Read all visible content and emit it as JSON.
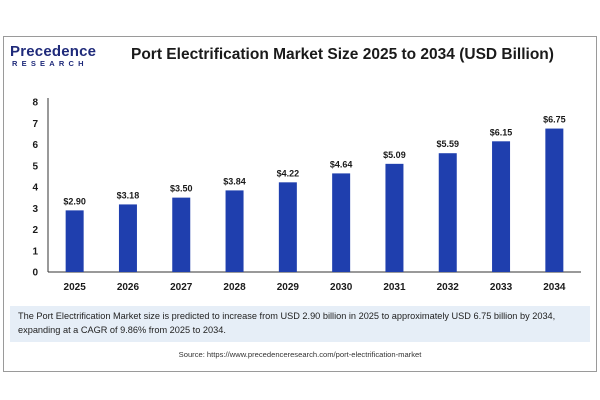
{
  "header": {
    "logo_main": "Precedence",
    "logo_sub": "RESEARCH",
    "title": "Port Electrification Market Size 2025 to 2034 (USD Billion)"
  },
  "colors": {
    "bar": "#1f3fae",
    "axis": "#333333",
    "logo": "#1f2a7a",
    "description_bg": "#e6eef7"
  },
  "chart_data": {
    "type": "bar",
    "title": "Port Electrification Market Size 2025 to 2034 (USD Billion)",
    "categories": [
      "2025",
      "2026",
      "2027",
      "2028",
      "2029",
      "2030",
      "2031",
      "2032",
      "2033",
      "2034"
    ],
    "values": [
      2.9,
      3.18,
      3.5,
      3.84,
      4.22,
      4.64,
      5.09,
      5.59,
      6.15,
      6.75
    ],
    "value_labels": [
      "$2.90",
      "$3.18",
      "$3.50",
      "$3.84",
      "$4.22",
      "$4.64",
      "$5.09",
      "$5.59",
      "$6.15",
      "$6.75"
    ],
    "yticks": [
      0,
      1,
      2,
      3,
      4,
      5,
      6,
      7,
      8
    ],
    "ylim": [
      0,
      8
    ],
    "xlabel": "",
    "ylabel": "",
    "grid": false
  },
  "description": "The Port Electrification Market size is predicted to increase from USD 2.90 billion in 2025 to approximately USD 6.75 billion by 2034, expanding at a CAGR of 9.86% from 2025 to 2034.",
  "source": "Source: https://www.precedenceresearch.com/port-electrification-market"
}
